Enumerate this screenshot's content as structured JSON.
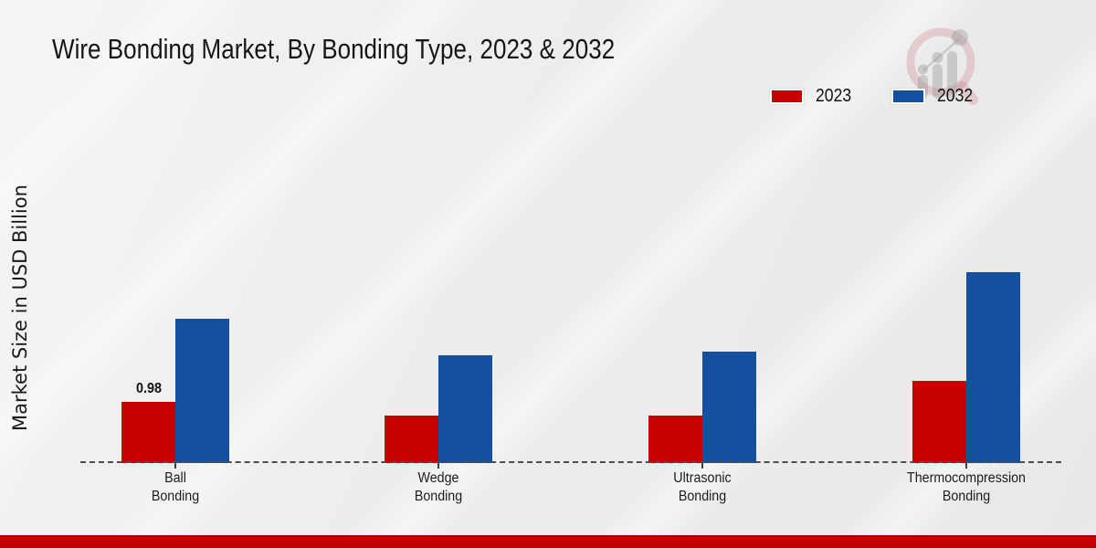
{
  "page": {
    "title": "Wire Bonding Market, By Bonding Type, 2023 & 2032"
  },
  "y_axis_label": "Market Size in USD Billion",
  "legend": {
    "position": "top-right",
    "items": [
      {
        "label": "2023",
        "color": "#c80101"
      },
      {
        "label": "2032",
        "color": "#15509e"
      }
    ]
  },
  "watermark_icon": "magnifier-bar-chart-logo",
  "colors": {
    "series_2023": "#c80101",
    "series_2032": "#15509e",
    "baseline_dash": "#4e4e4e",
    "footer_strip": "#c00000",
    "background": "#ececec"
  },
  "chart_data": {
    "type": "bar",
    "title": "Wire Bonding Market, By Bonding Type, 2023 & 2032",
    "xlabel": "",
    "ylabel": "Market Size in USD Billion",
    "units": "USD Billion",
    "grid": false,
    "legend_position": "top-right",
    "baseline_style": "dashed",
    "ylim": [
      0,
      3.3
    ],
    "categories": [
      "Ball Bonding",
      "Wedge Bonding",
      "Ultrasonic Bonding",
      "Thermocompression Bonding"
    ],
    "category_lines": [
      [
        "Ball",
        "Bonding"
      ],
      [
        "Wedge",
        "Bonding"
      ],
      [
        "Ultrasonic",
        "Bonding"
      ],
      [
        "Thermocompression",
        "Bonding"
      ]
    ],
    "series": [
      {
        "name": "2023",
        "color": "#c80101",
        "values": [
          0.98,
          0.76,
          0.76,
          1.31
        ],
        "data_labels": [
          "0.98",
          "",
          "",
          ""
        ]
      },
      {
        "name": "2032",
        "color": "#15509e",
        "values": [
          2.31,
          1.73,
          1.78,
          3.06
        ],
        "data_labels": [
          "",
          "",
          "",
          ""
        ]
      }
    ]
  }
}
